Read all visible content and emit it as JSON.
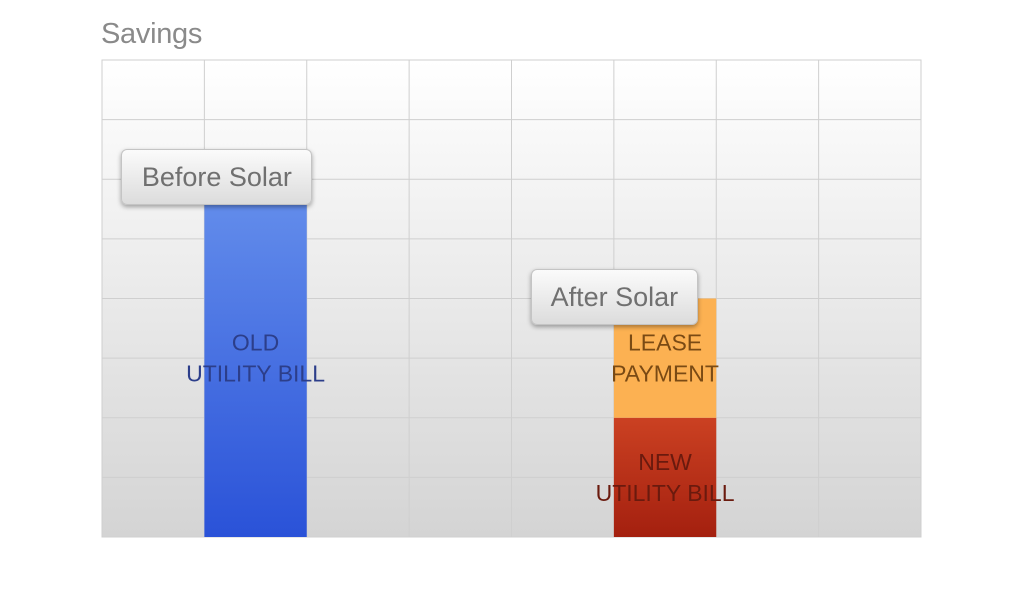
{
  "chart_data": {
    "type": "bar",
    "stacked": true,
    "title": "Savings",
    "xlabel": "",
    "ylabel": "",
    "ylim": [
      0,
      8
    ],
    "grid": true,
    "legend": "none",
    "categories": [
      "Before Solar",
      "After Solar"
    ],
    "series": [
      {
        "segment_labels": [
          "OLD\nUTILITY BILL",
          ""
        ],
        "values": [
          6,
          0
        ],
        "colors": [
          "#2a52d8",
          "#6690ec"
        ]
      },
      {
        "segment_labels": [
          "",
          "NEW\nUTILITY BILL"
        ],
        "values": [
          0,
          2
        ],
        "colors": [
          "#a4200f",
          "#cb4122"
        ]
      },
      {
        "segment_labels": [
          "",
          "LEASE\nPAYMENT"
        ],
        "values": [
          0,
          2
        ],
        "colors": [
          "#fcb152",
          "#fcb152"
        ]
      }
    ]
  }
}
